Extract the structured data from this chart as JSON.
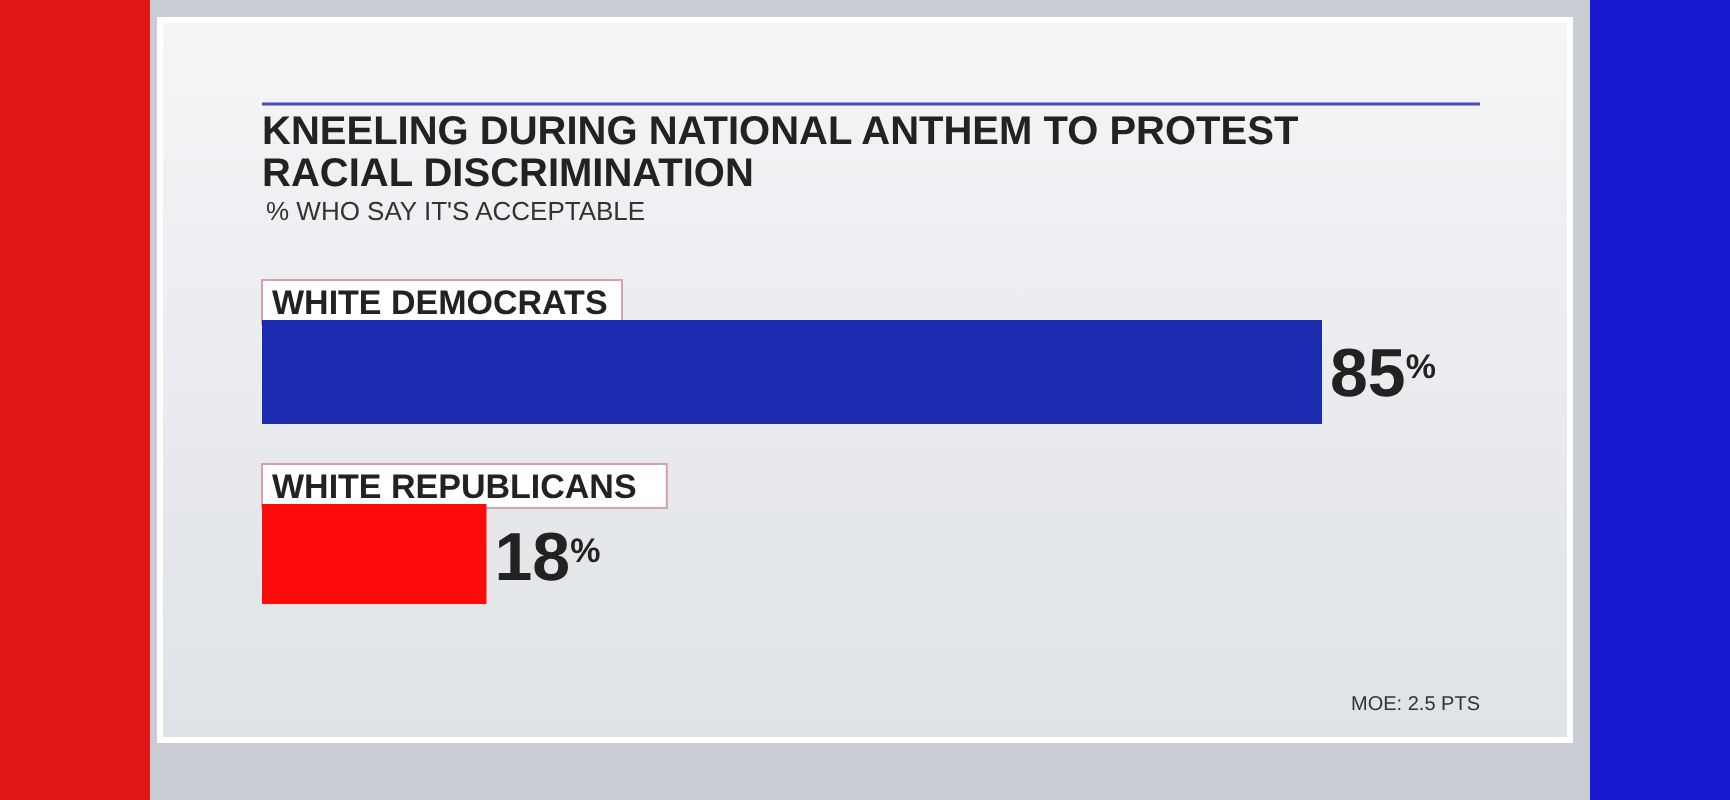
{
  "chart_data": {
    "type": "bar",
    "orientation": "horizontal",
    "title": "KNEELING DURING NATIONAL ANTHEM TO PROTEST RACIAL DISCRIMINATION",
    "subtitle": "% WHO SAY IT'S ACCEPTABLE",
    "categories": [
      "WHITE DEMOCRATS",
      "WHITE REPUBLICANS"
    ],
    "values": [
      85,
      18
    ],
    "colors": [
      "#1b2bb0",
      "#ff0a0a"
    ],
    "value_labels": [
      "85$^{%}$",
      "18$^{%}$"
    ],
    "annotations": [
      "MOE: 2.5 PTS"
    ]
  }
}
